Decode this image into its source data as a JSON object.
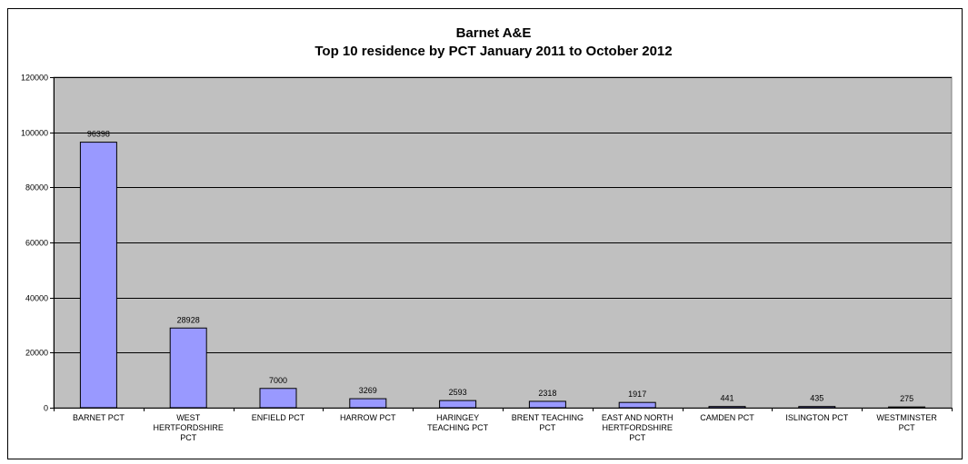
{
  "chart_data": {
    "type": "bar",
    "title_line1": "Barnet A&E",
    "title_line2": "Top 10 residence by PCT January 2011 to October 2012",
    "categories": [
      "BARNET PCT",
      "WEST HERTFORDSHIRE PCT",
      "ENFIELD PCT",
      "HARROW PCT",
      "HARINGEY TEACHING PCT",
      "BRENT TEACHING PCT",
      "EAST AND NORTH HERTFORDSHIRE PCT",
      "CAMDEN PCT",
      "ISLINGTON PCT",
      "WESTMINSTER PCT"
    ],
    "category_lines": [
      [
        "BARNET PCT"
      ],
      [
        "WEST",
        "HERTFORDSHIRE",
        "PCT"
      ],
      [
        "ENFIELD PCT"
      ],
      [
        "HARROW PCT"
      ],
      [
        "HARINGEY",
        "TEACHING PCT"
      ],
      [
        "BRENT TEACHING",
        "PCT"
      ],
      [
        "EAST AND NORTH",
        "HERTFORDSHIRE",
        "PCT"
      ],
      [
        "CAMDEN PCT"
      ],
      [
        "ISLINGTON PCT"
      ],
      [
        "WESTMINSTER",
        "PCT"
      ]
    ],
    "values": [
      96398,
      28928,
      7000,
      3269,
      2593,
      2318,
      1917,
      441,
      435,
      275
    ],
    "data_labels": [
      "96398",
      "28928",
      "7000",
      "3269",
      "2593",
      "2318",
      "1917",
      "441",
      "435",
      "275"
    ],
    "ylim": [
      0,
      120000
    ],
    "yticks": [
      0,
      20000,
      40000,
      60000,
      80000,
      100000,
      120000
    ],
    "ytick_labels": [
      "0",
      "20000",
      "40000",
      "60000",
      "80000",
      "100000",
      "120000"
    ],
    "grid": true,
    "legend": "none",
    "colors": {
      "bar_fill": "#9999ff",
      "bar_stroke": "#000000",
      "plot_bg": "#c0c0c0",
      "gridline": "#000000",
      "page_bg": "#ffffff"
    }
  }
}
